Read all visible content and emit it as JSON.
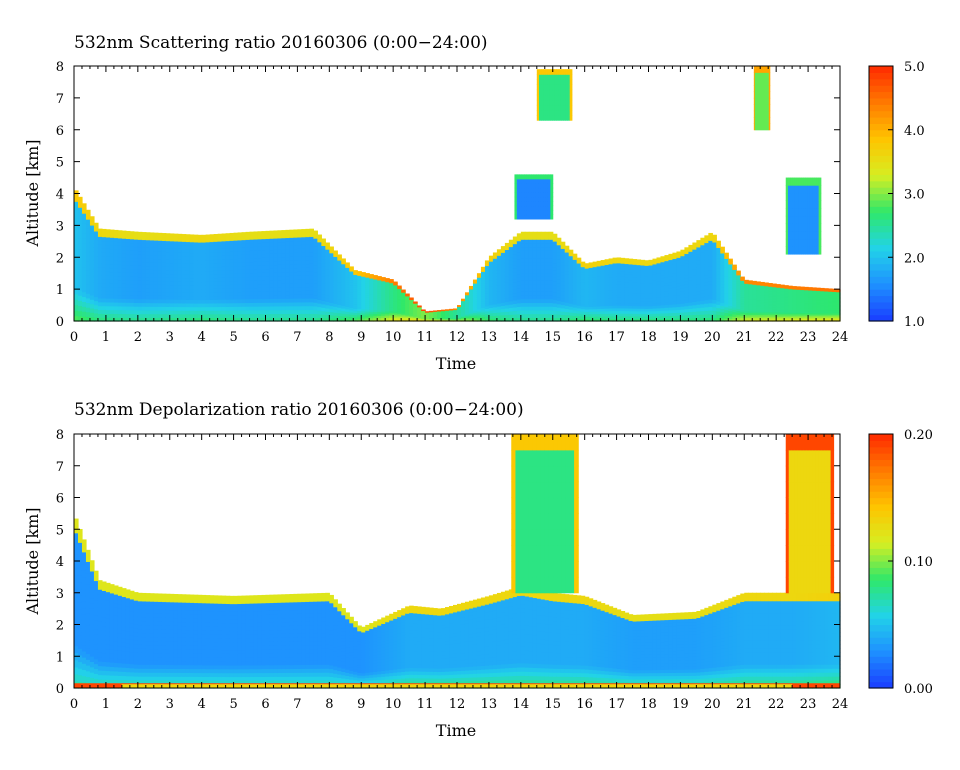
{
  "chart_data": [
    {
      "type": "heatmap",
      "title": "532nm Scattering ratio  20160306 (0:00−24:00)",
      "xlabel": "Time",
      "ylabel": "Altitude [km]",
      "xlim": [
        0,
        24
      ],
      "ylim": [
        0,
        8
      ],
      "x_ticks": [
        "0",
        "1",
        "2",
        "3",
        "4",
        "5",
        "6",
        "7",
        "8",
        "9",
        "10",
        "11",
        "12",
        "13",
        "14",
        "15",
        "16",
        "17",
        "18",
        "19",
        "20",
        "21",
        "22",
        "23",
        "24"
      ],
      "y_ticks": [
        "0",
        "1",
        "2",
        "3",
        "4",
        "5",
        "6",
        "7",
        "8"
      ],
      "colorbar": {
        "range": [
          1.0,
          5.0
        ],
        "tick_labels": [
          "1.0",
          "2.0",
          "3.0",
          "4.0",
          "5.0"
        ],
        "tick_values": [
          1.0,
          2.0,
          3.0,
          4.0,
          5.0
        ],
        "colors": [
          "#1a3cff",
          "#1e90ff",
          "#22d3e8",
          "#2ee86a",
          "#d6ee22",
          "#ffc400",
          "#ff7a00",
          "#ff2a00"
        ]
      },
      "profiles": [
        {
          "t": 0.0,
          "top": 4.2,
          "v": 2.0
        },
        {
          "t": 0.8,
          "top": 2.9,
          "v": 1.8
        },
        {
          "t": 2.0,
          "top": 2.8,
          "v": 1.7
        },
        {
          "t": 4.0,
          "top": 2.7,
          "v": 1.8
        },
        {
          "t": 5.5,
          "top": 2.8,
          "v": 1.7
        },
        {
          "t": 7.5,
          "top": 2.9,
          "v": 1.7
        },
        {
          "t": 8.8,
          "top": 1.6,
          "v": 2.0
        },
        {
          "t": 10.0,
          "top": 1.3,
          "v": 2.6
        },
        {
          "t": 11.0,
          "top": 0.3,
          "v": 3.0
        },
        {
          "t": 12.0,
          "top": 0.4,
          "v": 2.5
        },
        {
          "t": 13.0,
          "top": 2.0,
          "v": 1.9
        },
        {
          "t": 14.0,
          "top": 2.8,
          "v": 1.7
        },
        {
          "t": 15.0,
          "top": 2.8,
          "v": 1.7
        },
        {
          "t": 16.0,
          "top": 1.8,
          "v": 1.9
        },
        {
          "t": 17.0,
          "top": 2.0,
          "v": 1.8
        },
        {
          "t": 18.0,
          "top": 1.9,
          "v": 1.8
        },
        {
          "t": 19.0,
          "top": 2.2,
          "v": 1.8
        },
        {
          "t": 20.0,
          "top": 2.8,
          "v": 1.8
        },
        {
          "t": 21.0,
          "top": 1.3,
          "v": 2.5
        },
        {
          "t": 22.5,
          "top": 1.1,
          "v": 2.6
        },
        {
          "t": 24.0,
          "top": 1.0,
          "v": 2.7
        }
      ],
      "features": [
        {
          "name": "elevated layer",
          "t0": 13.8,
          "t1": 15.0,
          "z0": 3.2,
          "z1": 4.6,
          "v": 1.5
        },
        {
          "name": "upper cloud",
          "t0": 14.5,
          "t1": 15.6,
          "z0": 6.3,
          "z1": 7.9,
          "v": 2.6
        },
        {
          "name": "upper cloud",
          "t0": 21.3,
          "t1": 21.8,
          "z0": 6.0,
          "z1": 8.0,
          "v": 2.9
        },
        {
          "name": "elevated layer",
          "t0": 22.3,
          "t1": 23.4,
          "z0": 2.1,
          "z1": 4.5,
          "v": 1.6
        }
      ]
    },
    {
      "type": "heatmap",
      "title": "532nm Depolarization ratio  20160306 (0:00−24:00)",
      "xlabel": "Time",
      "ylabel": "Altitude [km]",
      "xlim": [
        0,
        24
      ],
      "ylim": [
        0,
        8
      ],
      "x_ticks": [
        "0",
        "1",
        "2",
        "3",
        "4",
        "5",
        "6",
        "7",
        "8",
        "9",
        "10",
        "11",
        "12",
        "13",
        "14",
        "15",
        "16",
        "17",
        "18",
        "19",
        "20",
        "21",
        "22",
        "23",
        "24"
      ],
      "y_ticks": [
        "0",
        "1",
        "2",
        "3",
        "4",
        "5",
        "6",
        "7",
        "8"
      ],
      "colorbar": {
        "range": [
          0.0,
          0.2
        ],
        "tick_labels": [
          "0.00",
          "0.10",
          "0.20"
        ],
        "tick_values": [
          0.0,
          0.1,
          0.2
        ],
        "colors": [
          "#1a3cff",
          "#1e90ff",
          "#22d3e8",
          "#2ee86a",
          "#d6ee22",
          "#ffc400",
          "#ff7a00",
          "#ff2a00"
        ]
      },
      "profiles": [
        {
          "t": 0.0,
          "top": 5.5,
          "v": 0.03
        },
        {
          "t": 0.8,
          "top": 3.4,
          "v": 0.03
        },
        {
          "t": 2.0,
          "top": 3.0,
          "v": 0.03
        },
        {
          "t": 5.0,
          "top": 2.9,
          "v": 0.03
        },
        {
          "t": 8.0,
          "top": 3.0,
          "v": 0.03
        },
        {
          "t": 9.0,
          "top": 1.9,
          "v": 0.03
        },
        {
          "t": 10.5,
          "top": 2.6,
          "v": 0.04
        },
        {
          "t": 11.5,
          "top": 2.5,
          "v": 0.04
        },
        {
          "t": 13.0,
          "top": 2.9,
          "v": 0.04
        },
        {
          "t": 14.0,
          "top": 3.2,
          "v": 0.04
        },
        {
          "t": 15.0,
          "top": 3.0,
          "v": 0.04
        },
        {
          "t": 16.0,
          "top": 2.9,
          "v": 0.04
        },
        {
          "t": 17.5,
          "top": 2.3,
          "v": 0.035
        },
        {
          "t": 19.5,
          "top": 2.4,
          "v": 0.035
        },
        {
          "t": 21.0,
          "top": 3.0,
          "v": 0.04
        },
        {
          "t": 22.5,
          "top": 3.0,
          "v": 0.04
        },
        {
          "t": 24.0,
          "top": 3.0,
          "v": 0.045
        }
      ],
      "features": [
        {
          "name": "dust layer",
          "t0": 13.7,
          "t1": 15.8,
          "z0": 3.0,
          "z1": 8.0,
          "v": 0.08
        },
        {
          "name": "dust layer",
          "t0": 22.3,
          "t1": 23.8,
          "z0": 3.0,
          "z1": 8.0,
          "v": 0.13
        },
        {
          "name": "near-surface",
          "t0": 0.0,
          "t1": 24.0,
          "z0": 0.0,
          "z1": 0.15,
          "v": 0.13
        }
      ]
    }
  ]
}
